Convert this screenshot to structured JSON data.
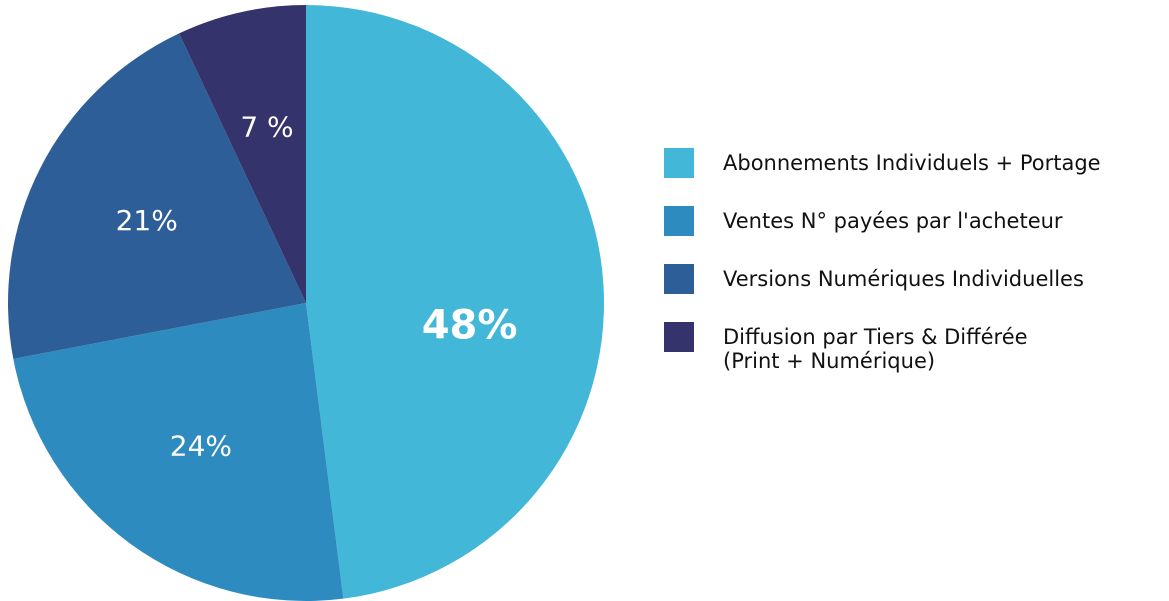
{
  "chart_data": {
    "type": "pie",
    "categories": [
      "Abonnements Individuels + Portage",
      "Ventes N° payées par l'acheteur",
      "Versions Numériques Individuelles",
      "Diffusion par Tiers & Différée\n(Print + Numérique)"
    ],
    "values": [
      48,
      24,
      21,
      7
    ],
    "value_labels": [
      "48%",
      "24%",
      "21%",
      "7 %"
    ],
    "colors": [
      "#42b7d7",
      "#2e8bbf",
      "#2e5e97",
      "#34336b"
    ]
  }
}
